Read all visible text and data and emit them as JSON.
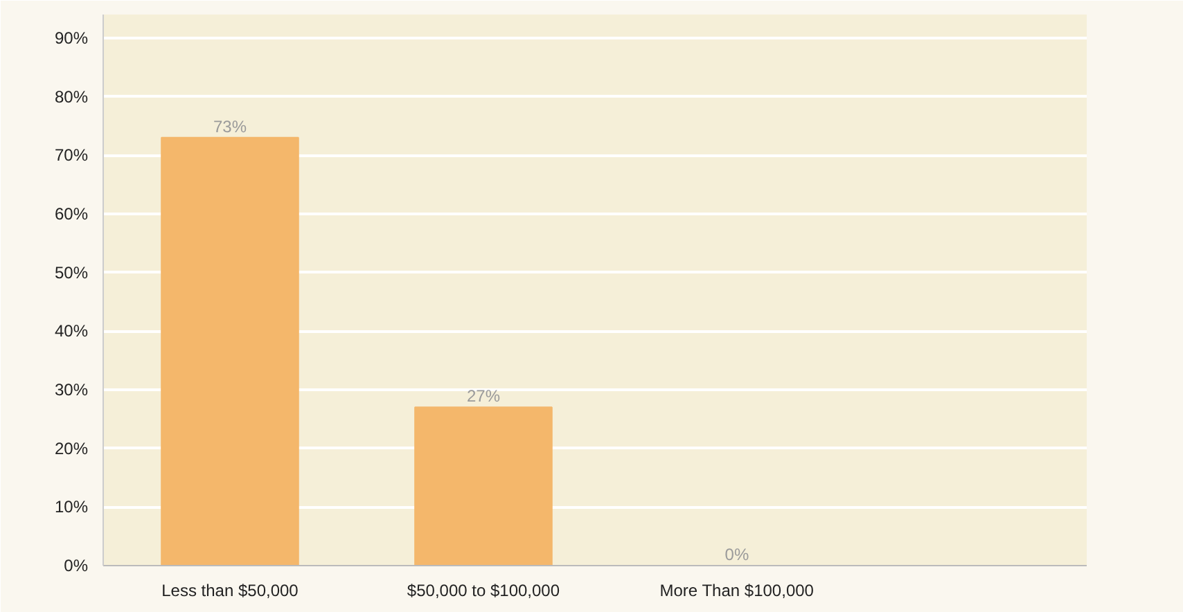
{
  "chart_data": {
    "type": "bar",
    "categories": [
      "Less than $50,000",
      "$50,000 to $100,000",
      "More Than $100,000"
    ],
    "values": [
      73,
      27,
      0
    ],
    "value_labels": [
      "73%",
      "27%",
      "0%"
    ],
    "color": "#f4b76b",
    "ylim": [
      0,
      94
    ],
    "yticks": [
      {
        "value": 0,
        "label": "0%"
      },
      {
        "value": 10,
        "label": "10%"
      },
      {
        "value": 20,
        "label": "20%"
      },
      {
        "value": 30,
        "label": "30%"
      },
      {
        "value": 40,
        "label": "40%"
      },
      {
        "value": 50,
        "label": "50%"
      },
      {
        "value": 60,
        "label": "60%"
      },
      {
        "value": 70,
        "label": "70%"
      },
      {
        "value": 80,
        "label": "80%"
      },
      {
        "value": 90,
        "label": "90%"
      }
    ],
    "grid": "y"
  }
}
